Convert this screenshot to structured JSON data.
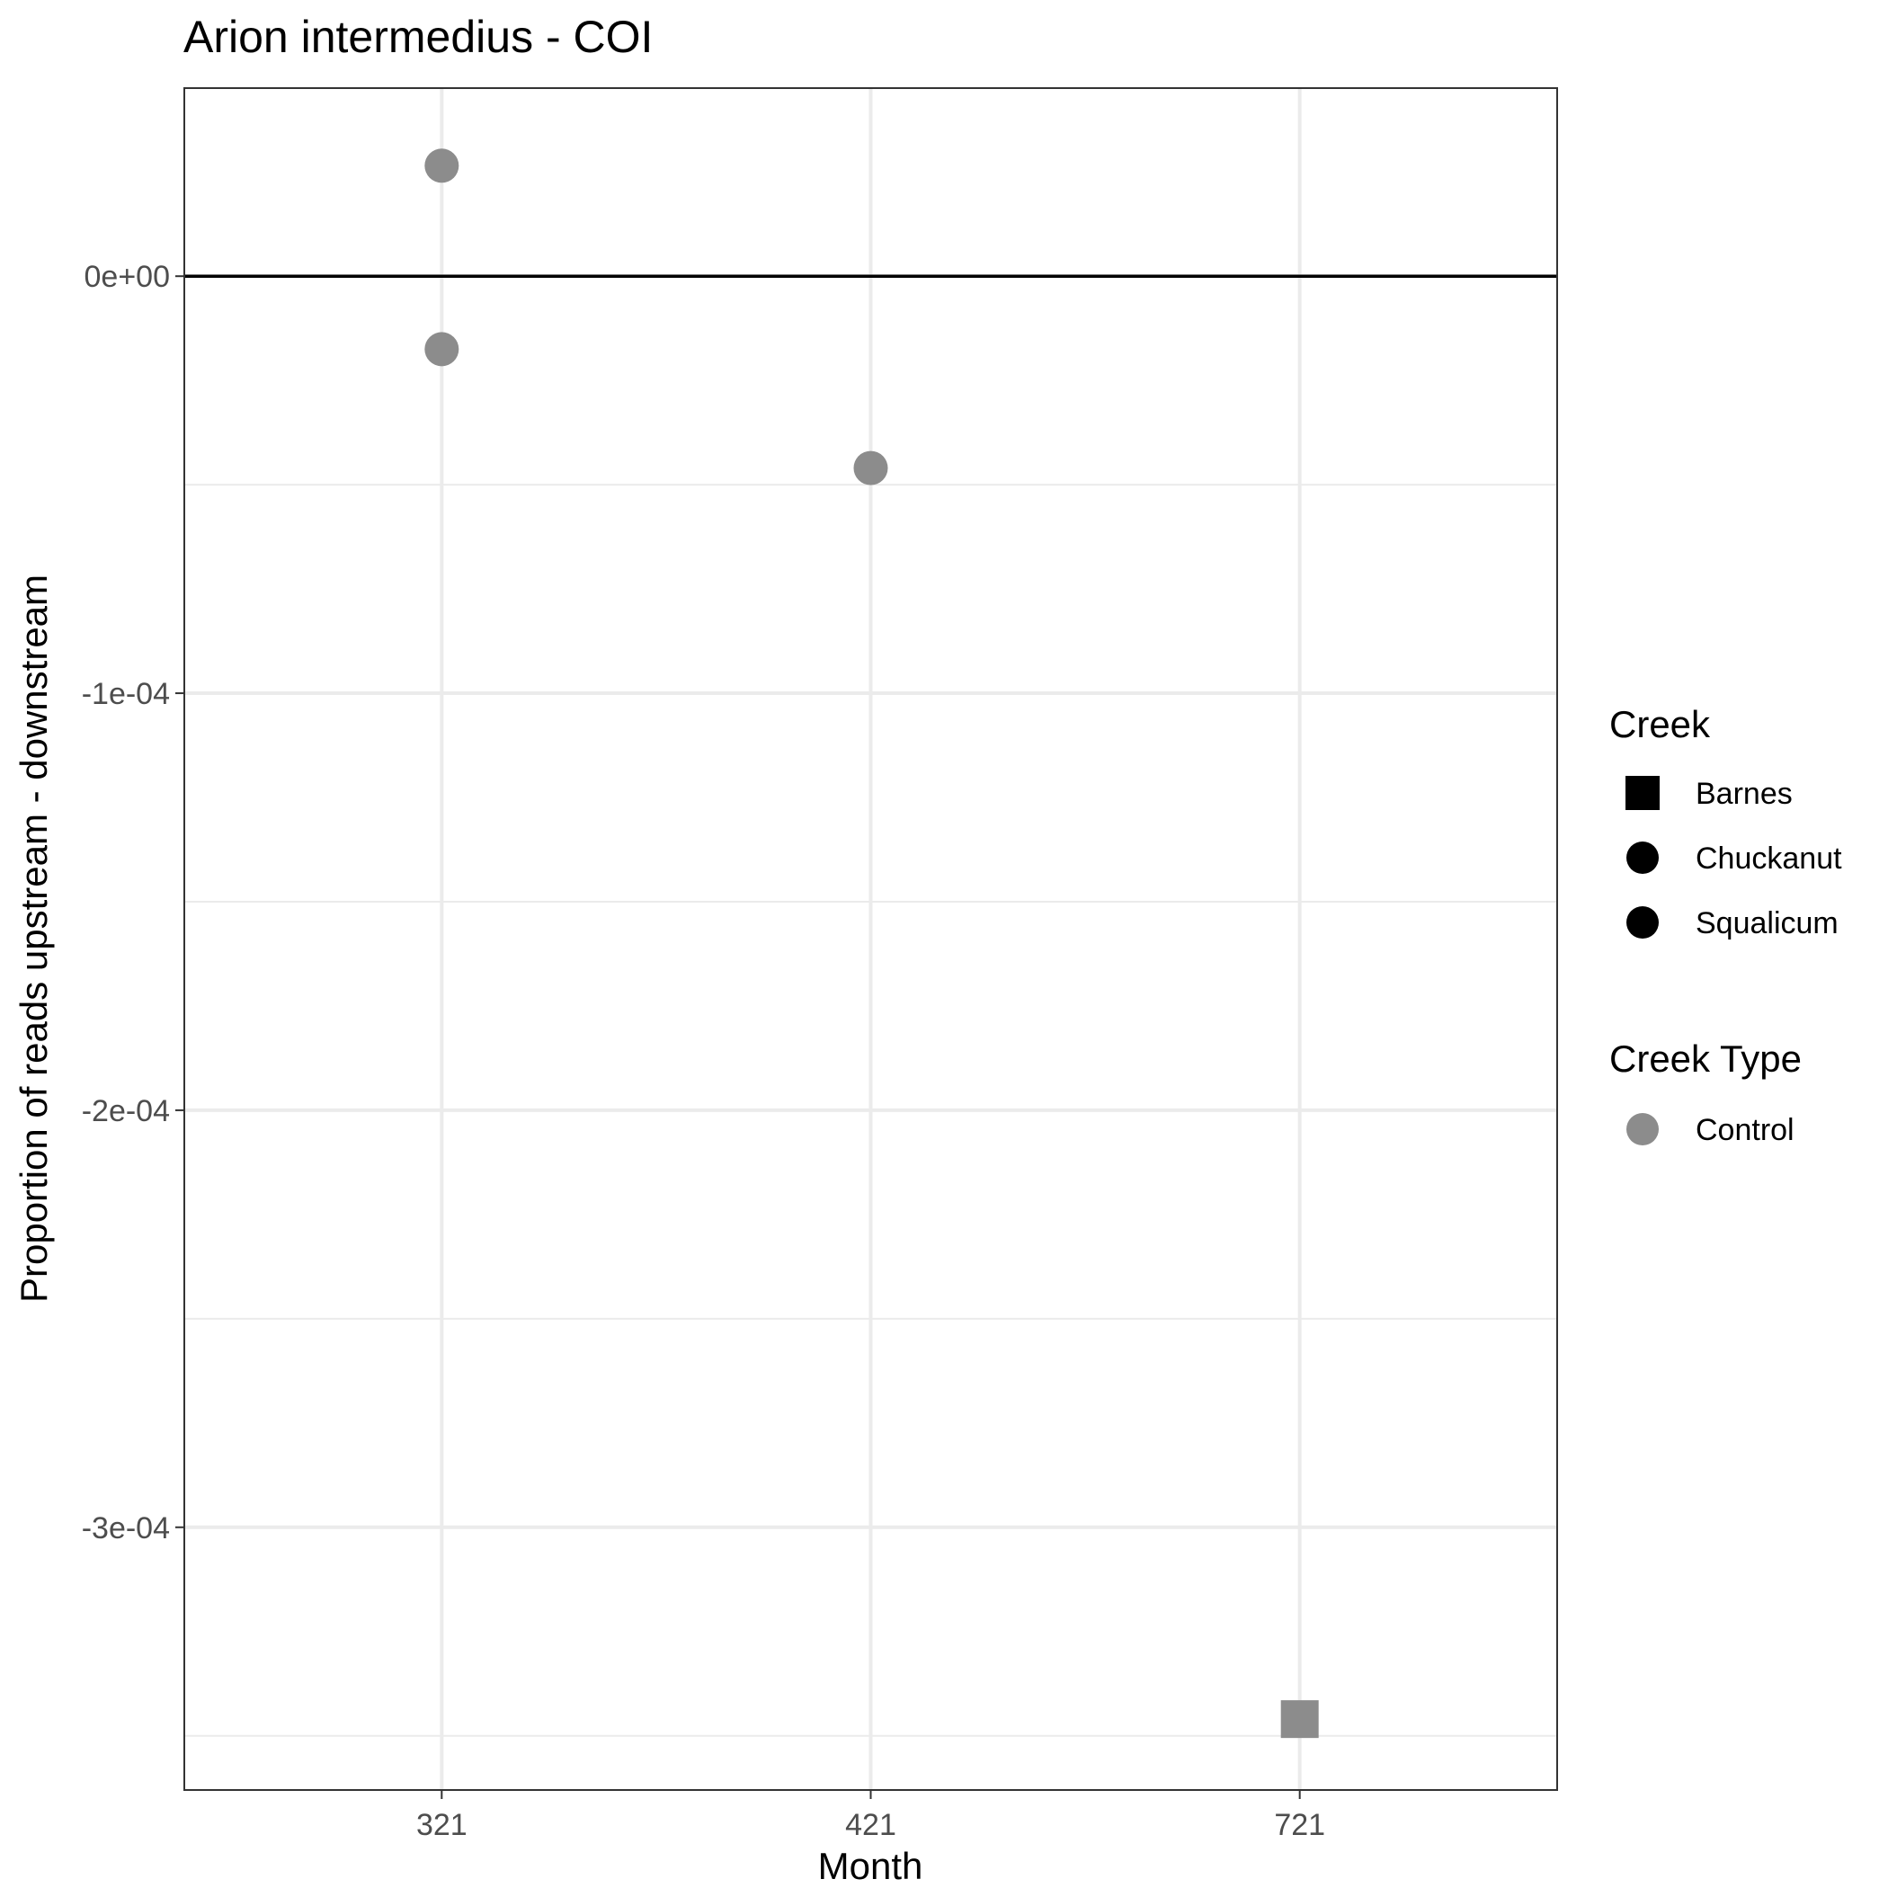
{
  "chart_data": {
    "type": "scatter",
    "title": "Arion intermedius - COI",
    "xlabel": "Month",
    "ylabel": "Proportion of reads upstream - downstream",
    "categories": [
      "321",
      "421",
      "721"
    ],
    "ylim": [
      -0.000363,
      4.51e-05
    ],
    "y_ticks": [
      0,
      -0.0001,
      -0.0002,
      -0.0003
    ],
    "y_tick_labels": [
      "0e+00",
      "-1e-04",
      "-2e-04",
      "-3e-04"
    ],
    "hline": 0,
    "grid": true,
    "legend_position": "right",
    "legends": [
      {
        "title": "Creek",
        "items": [
          {
            "label": "Barnes",
            "shape": "square",
            "color": "#000000"
          },
          {
            "label": "Chuckanut",
            "shape": "circle",
            "color": "#000000"
          },
          {
            "label": "Squalicum",
            "shape": "circle",
            "color": "#000000"
          }
        ]
      },
      {
        "title": "Creek Type",
        "items": [
          {
            "label": "Control",
            "shape": "circle",
            "color": "#8c8c8c"
          }
        ]
      }
    ],
    "points": [
      {
        "x": "321",
        "y": 2.65e-05,
        "creek": "Chuckanut",
        "creek_type": "Control"
      },
      {
        "x": "321",
        "y": -1.75e-05,
        "creek": "Squalicum",
        "creek_type": "Control"
      },
      {
        "x": "421",
        "y": -4.6e-05,
        "creek": "Chuckanut",
        "creek_type": "Control"
      },
      {
        "x": "721",
        "y": -0.000346,
        "creek": "Barnes",
        "creek_type": "Control"
      }
    ],
    "point_color": "#8c8c8c"
  }
}
